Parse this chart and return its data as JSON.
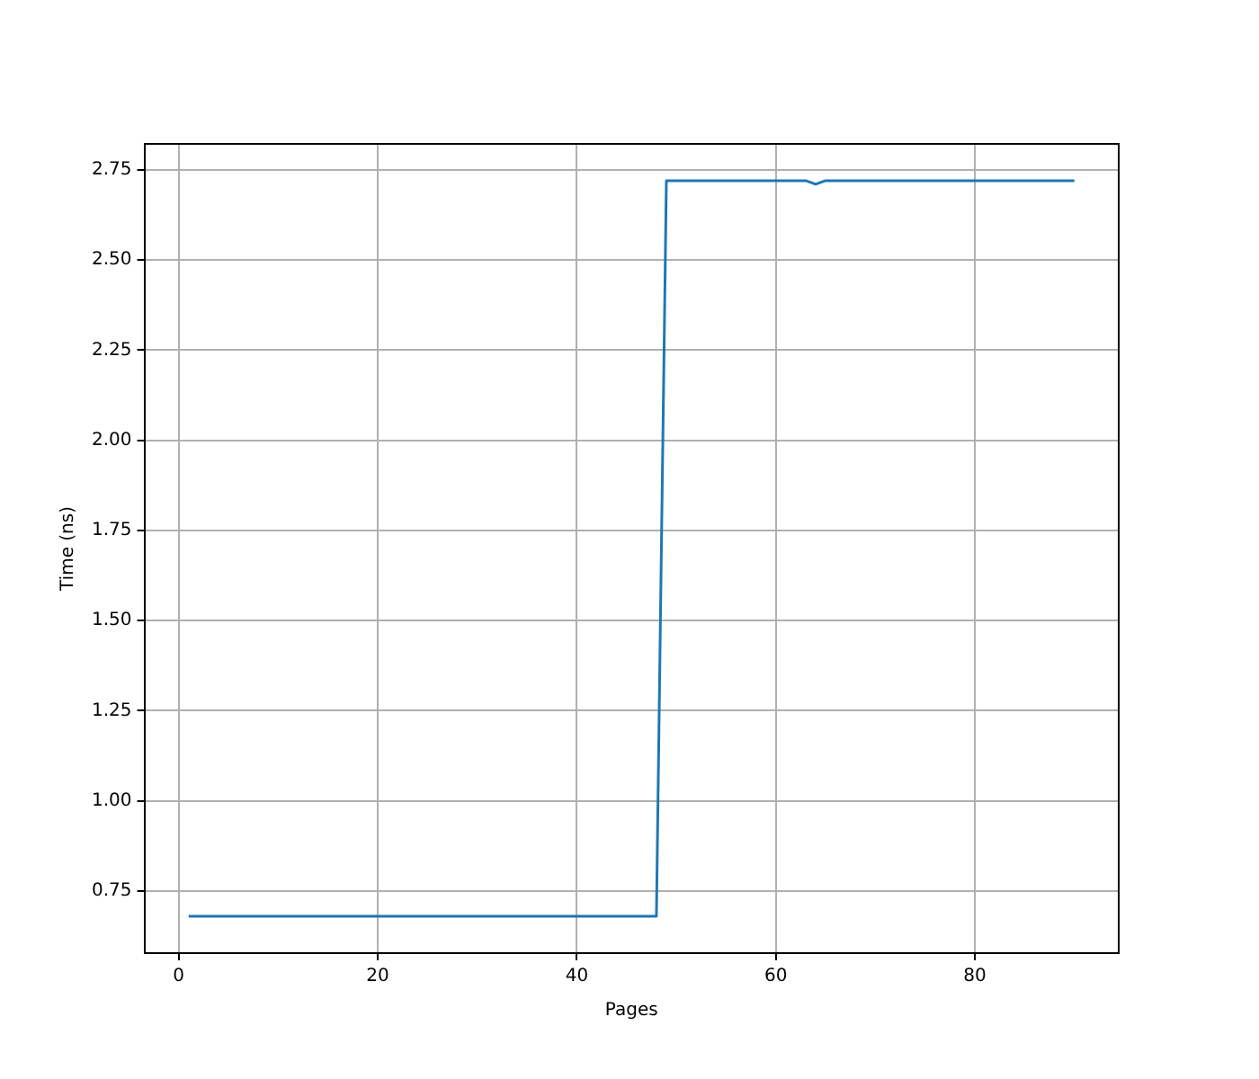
{
  "chart_data": {
    "type": "line",
    "xlabel": "Pages",
    "ylabel": "Time (ns)",
    "x": [
      1,
      48,
      49,
      63,
      64,
      65,
      90
    ],
    "series": [
      {
        "color": "#1f77b4",
        "values": [
          0.68,
          0.68,
          2.72,
          2.72,
          2.71,
          2.72,
          2.72
        ]
      }
    ],
    "xlim": [
      -3.45,
      94.45
    ],
    "ylim": [
      0.578,
      2.822
    ],
    "xticks": [
      0,
      20,
      40,
      60,
      80
    ],
    "yticks": [
      0.75,
      {
        "value": 1.0,
        "label": "1.00"
      },
      1.25,
      {
        "value": 1.5,
        "label": "1.50"
      },
      1.75,
      {
        "value": 2.0,
        "label": "2.00"
      },
      2.25,
      {
        "value": 2.5,
        "label": "2.50"
      },
      2.75
    ],
    "grid": true,
    "legend": false,
    "marker": "none",
    "line_style": "solid"
  }
}
